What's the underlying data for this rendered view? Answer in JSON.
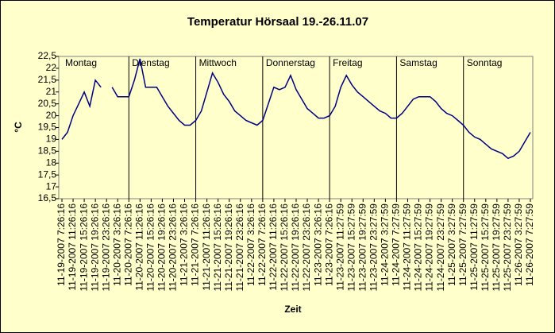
{
  "chart_data": {
    "type": "line",
    "title": "Temperatur Hörsaal 19.-26.11.07",
    "x_label": "Zeit",
    "y_label": "°C",
    "day_labels": [
      "Montag",
      "Dienstag",
      "Mittwoch",
      "Donnerstag",
      "Freitag",
      "Samstag",
      "Sonntag"
    ],
    "categories": [
      "11-19-2007 7:26:16",
      null,
      "11-19-2007 11:26:16",
      null,
      "11-19-2007 15:26:16",
      null,
      "11-19-2007 19:26:16",
      null,
      "11-19-2007 23:26:16",
      null,
      "11-20-2007 3:26:16",
      null,
      "11-20-2007 7:26:16",
      null,
      "11-20-2007 11:26:16",
      null,
      "11-20-2007 15:26:16",
      null,
      "11-20-2007 19:26:16",
      null,
      "11-20-2007 23:26:16",
      null,
      "11-21-2007 3:26:16",
      null,
      "11-21-2007 7:26:16",
      null,
      "11-21-2007 11:26:16",
      null,
      "11-21-2007 15:26:16",
      null,
      "11-21-2007 19:26:16",
      null,
      "11-21-2007 23:26:16",
      null,
      "11-22-2007 3:26:16",
      null,
      "11-22-2007 7:26:16",
      null,
      "11-22-2007 11:26:16",
      null,
      "11-22-2007 15:26:16",
      null,
      "11-22-2007 19:26:16",
      null,
      "11-22-2007 23:26:16",
      null,
      "11-23-2007 3:26:16",
      null,
      "11-23-2007 7:26:16",
      null,
      "11-23-2007 11:27:59",
      null,
      "11-23-2007 15:27:59",
      null,
      "11-23-2007 19:27:59",
      null,
      "11-23-2007 23:27:59",
      null,
      "11-24-2007 3:27:59",
      null,
      "11-24-2007 7:27:59",
      null,
      "11-24-2007 11:27:59",
      null,
      "11-24-2007 15:27:59",
      null,
      "11-24-2007 19:27:59",
      null,
      "11-24-2007 23:27:59",
      null,
      "11-25-2007 3:27:59",
      null,
      "11-25-2007 7:27:59",
      null,
      "11-25-2007 11:27:59",
      null,
      "11-25-2007 15:27:59",
      null,
      "11-25-2007 19:27:59",
      null,
      "11-25-2007 23:27:59",
      null,
      "11-26-2007 3:27:59",
      null,
      "11-26-2007 7:27:59"
    ],
    "series": [
      {
        "name": "Temperatur",
        "color": "#000080",
        "values": [
          19.0,
          19.3,
          20.0,
          20.5,
          21.0,
          20.4,
          21.5,
          21.2,
          null,
          21.2,
          20.8,
          20.8,
          20.8,
          21.5,
          22.4,
          21.2,
          21.2,
          21.2,
          20.8,
          20.4,
          20.1,
          19.8,
          19.6,
          19.6,
          19.8,
          20.2,
          21.0,
          21.8,
          21.4,
          20.9,
          20.6,
          20.2,
          20.0,
          19.8,
          19.7,
          19.6,
          19.8,
          20.5,
          21.2,
          21.1,
          21.2,
          21.7,
          21.1,
          20.7,
          20.3,
          20.1,
          19.9,
          19.9,
          20.0,
          20.4,
          21.2,
          21.7,
          21.3,
          21.0,
          20.8,
          20.6,
          20.4,
          20.2,
          20.1,
          19.9,
          19.9,
          20.1,
          20.4,
          20.7,
          20.8,
          20.8,
          20.8,
          20.6,
          20.3,
          20.1,
          20.0,
          19.8,
          19.6,
          19.3,
          19.1,
          19.0,
          18.8,
          18.6,
          18.5,
          18.4,
          18.2,
          18.3,
          18.5,
          18.9,
          19.3
        ]
      }
    ],
    "ylim": [
      16.5,
      22.5
    ],
    "yticks": [
      {
        "value": 16.5,
        "label": "16,5"
      },
      17,
      {
        "value": 17.5,
        "label": "17,5"
      },
      18,
      {
        "value": 18.5,
        "label": "18,5"
      },
      19,
      {
        "value": 19.5,
        "label": "19,5"
      },
      20,
      {
        "value": 20.5,
        "label": "20,5"
      },
      21,
      {
        "value": 21.5,
        "label": "21,5"
      },
      22,
      {
        "value": 22.5,
        "label": "22,5"
      }
    ],
    "grid": false,
    "background": "#ffffcc"
  }
}
